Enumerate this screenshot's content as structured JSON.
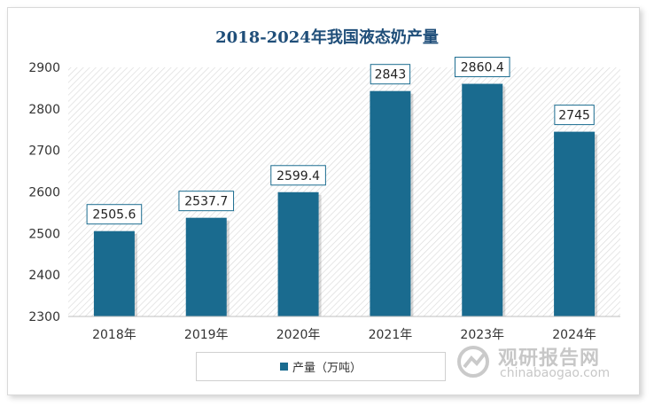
{
  "chart_data": {
    "type": "bar",
    "title": "2018-2024年我国液态奶产量",
    "categories": [
      "2018年",
      "2019年",
      "2020年",
      "2021年",
      "2023年",
      "2024年"
    ],
    "series": [
      {
        "name": "产量（万吨）",
        "values": [
          2505.6,
          2537.7,
          2599.4,
          2843,
          2860.4,
          2745
        ],
        "labels": [
          "2505.6",
          "2537.7",
          "2599.4",
          "2843",
          "2860.4",
          "2745"
        ]
      }
    ],
    "ylim": [
      2300,
      2900
    ],
    "yticks": [
      "2300",
      "2400",
      "2500",
      "2600",
      "2700",
      "2800",
      "2900"
    ],
    "xlabel": "",
    "ylabel": "",
    "grid": false,
    "plot_background": "diagonal hatch",
    "legend_position": "bottom",
    "bar_color": "#1a6b8f",
    "label_border_color": "#1a6b8f",
    "title_color": "#1f4e79"
  },
  "watermark": {
    "name_cn": "观研报告网",
    "url": "chinabaogao.com"
  }
}
